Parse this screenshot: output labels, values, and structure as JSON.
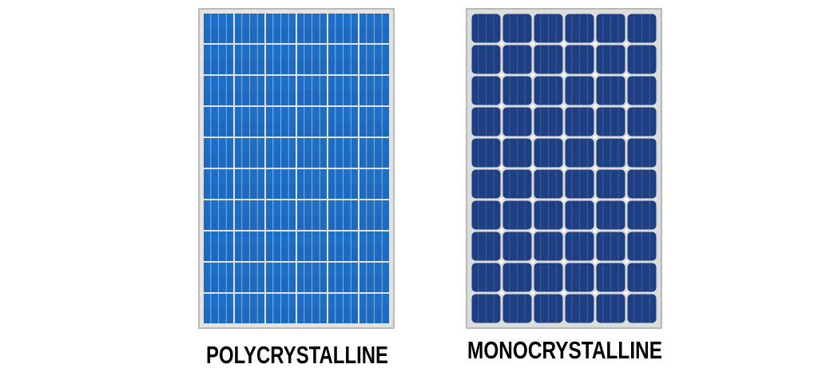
{
  "panels": [
    {
      "label": "POLYCRYSTALLINE"
    },
    {
      "label": "MONOCRYSTALLINE"
    }
  ]
}
